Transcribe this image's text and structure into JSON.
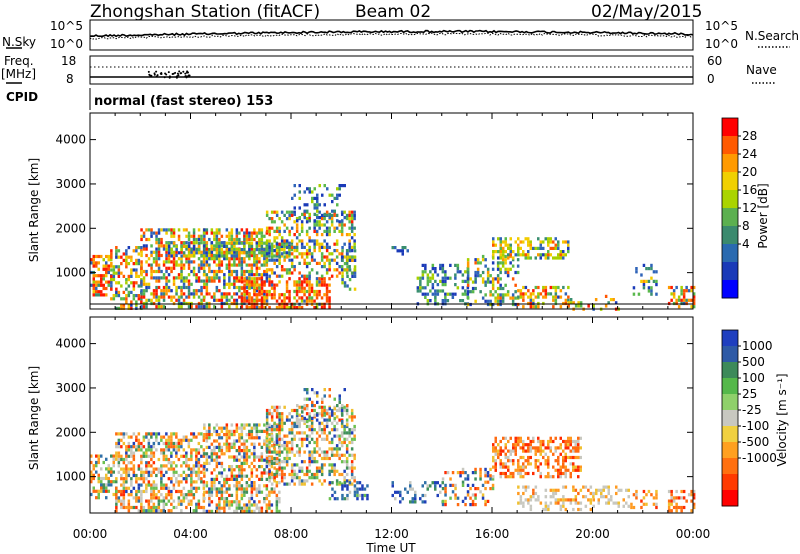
{
  "header": {
    "station": "Zhongshan Station (fitACF)",
    "beam": "Beam 02",
    "date": "02/May/2015"
  },
  "top_panels": {
    "nsky_label": "N.Sky",
    "nsearch_label": "N.Search",
    "left_ticks": [
      "10^5",
      "10^0"
    ],
    "right_ticks": [
      "10^5",
      "10^0"
    ],
    "freq_label_1": "Freq.",
    "freq_label_2": "[MHz]",
    "freq_ticks": [
      "18",
      "8"
    ],
    "nave_ticks": [
      "60",
      "0"
    ],
    "nave_label": "Nave",
    "cpid_label": "CPID",
    "cpid_text": "normal (fast stereo) 153"
  },
  "chart_data": [
    {
      "type": "heatmap",
      "name": "power-panel",
      "ylabel": "Slant Range [km]",
      "xlabel": "",
      "x_ticks": [
        "00:00",
        "04:00",
        "08:00",
        "12:00",
        "16:00",
        "20:00",
        "00:00"
      ],
      "y_ticks": [
        1000,
        2000,
        3000,
        4000
      ],
      "ylim": [
        180,
        4600
      ],
      "xlim_hours": [
        0,
        24
      ],
      "colorbar": {
        "label": "Power [dB]",
        "ticks": [
          "28",
          "24",
          "20",
          "16",
          "12",
          "8",
          "4"
        ],
        "colors": [
          "#ff0000",
          "#ff5a00",
          "#ff9a00",
          "#f0d000",
          "#aad400",
          "#5cb050",
          "#3b8a6e",
          "#2a6ab0",
          "#1a3ab8",
          "#0000ff"
        ]
      }
    },
    {
      "type": "heatmap",
      "name": "velocity-panel",
      "ylabel": "Slant Range [km]",
      "xlabel": "Time UT",
      "x_ticks": [
        "00:00",
        "04:00",
        "08:00",
        "12:00",
        "16:00",
        "20:00",
        "00:00"
      ],
      "y_ticks": [
        1000,
        2000,
        3000,
        4000
      ],
      "ylim": [
        180,
        4600
      ],
      "xlim_hours": [
        0,
        24
      ],
      "colorbar": {
        "label": "Velocity [m s⁻¹]",
        "ticks": [
          "1000",
          "500",
          "100",
          "25",
          "-25",
          "-100",
          "-500",
          "-1000"
        ],
        "colors": [
          "#1f3fbf",
          "#2e5aa6",
          "#3d8a5a",
          "#55b84a",
          "#8fd06a",
          "#c8c8c0",
          "#f0d040",
          "#ffa020",
          "#ff7010",
          "#ff3a00",
          "#ff0000"
        ]
      }
    }
  ]
}
